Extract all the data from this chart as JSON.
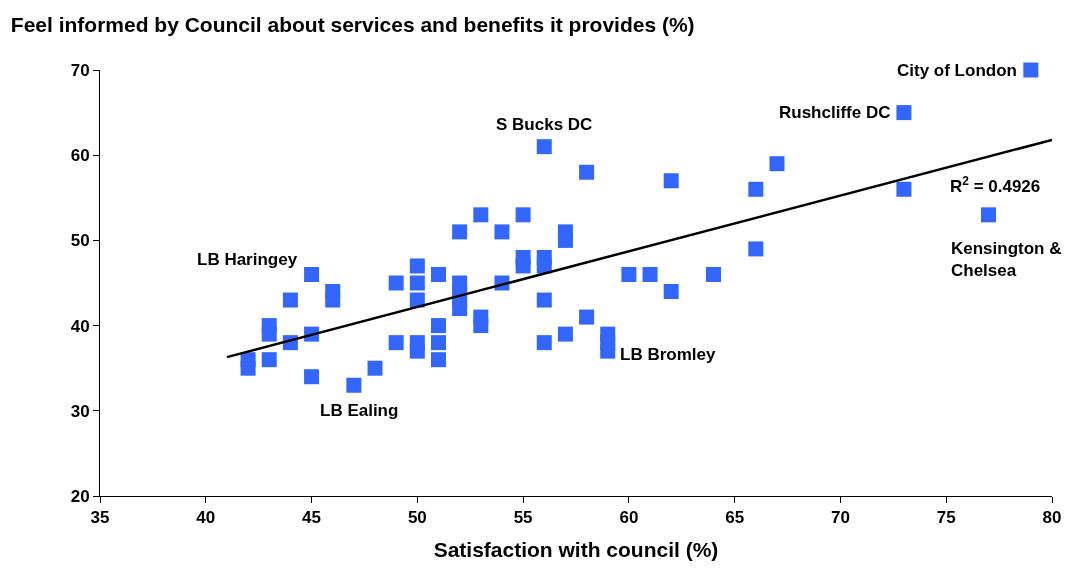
{
  "chart_data": {
    "type": "scatter",
    "title": "Feel informed by Council about services and benefits it provides (%)",
    "xlabel": "Satisfaction with council (%)",
    "xlim": [
      35,
      80
    ],
    "xticks": [
      35,
      40,
      45,
      50,
      55,
      60,
      65,
      70,
      75,
      80
    ],
    "ylim": [
      20,
      70
    ],
    "yticks": [
      20,
      30,
      40,
      50,
      60,
      70
    ],
    "marker": "square",
    "series": [
      {
        "color": "#3366ff",
        "x": [
          42,
          42,
          43,
          43,
          43,
          44,
          44,
          45,
          45,
          45,
          46,
          46,
          47,
          48,
          49,
          49,
          50,
          50,
          50,
          50,
          50,
          51,
          51,
          51,
          51,
          52,
          52,
          52,
          52,
          52,
          53,
          53,
          53,
          54,
          54,
          55,
          55,
          55,
          56,
          56,
          56,
          56,
          56,
          57,
          57,
          57,
          58,
          58,
          59,
          59,
          59,
          60,
          61,
          62,
          62,
          64,
          66,
          66,
          67,
          73,
          73,
          77,
          79
        ],
        "values": [
          36,
          35,
          40,
          39,
          36,
          43,
          38,
          46,
          39,
          34,
          44,
          43,
          33,
          35,
          45,
          38,
          47,
          45,
          43,
          38,
          37,
          46,
          40,
          38,
          36,
          51,
          45,
          44,
          43,
          42,
          53,
          41,
          40,
          51,
          45,
          53,
          48,
          47,
          61,
          48,
          47,
          43,
          38,
          51,
          50,
          39,
          58,
          41,
          39,
          38,
          37,
          46,
          46,
          57,
          44,
          46,
          56,
          49,
          59,
          65,
          56,
          53,
          70
        ]
      },
      {
        "type": "line",
        "color": "#000000",
        "line_style": "solid",
        "marker": "none",
        "x": [
          41,
          80
        ],
        "values": [
          36.3,
          61.8
        ]
      }
    ],
    "annotations": [
      {
        "text": "LB Haringey",
        "x": 45,
        "y": 46
      },
      {
        "text": "LB Ealing",
        "x": 47,
        "y": 33
      },
      {
        "text": "S Bucks DC",
        "x": 56,
        "y": 61
      },
      {
        "text": "LB Bromley",
        "x": 59,
        "y": 37
      },
      {
        "text": "City of London",
        "x": 79,
        "y": 70
      },
      {
        "text": "Rushcliffe DC",
        "x": 73,
        "y": 65
      },
      {
        "text": "Kensington &\nChelsea",
        "x": 77,
        "y": 53
      },
      "R$^{2}$ = 0.4926"
    ]
  }
}
